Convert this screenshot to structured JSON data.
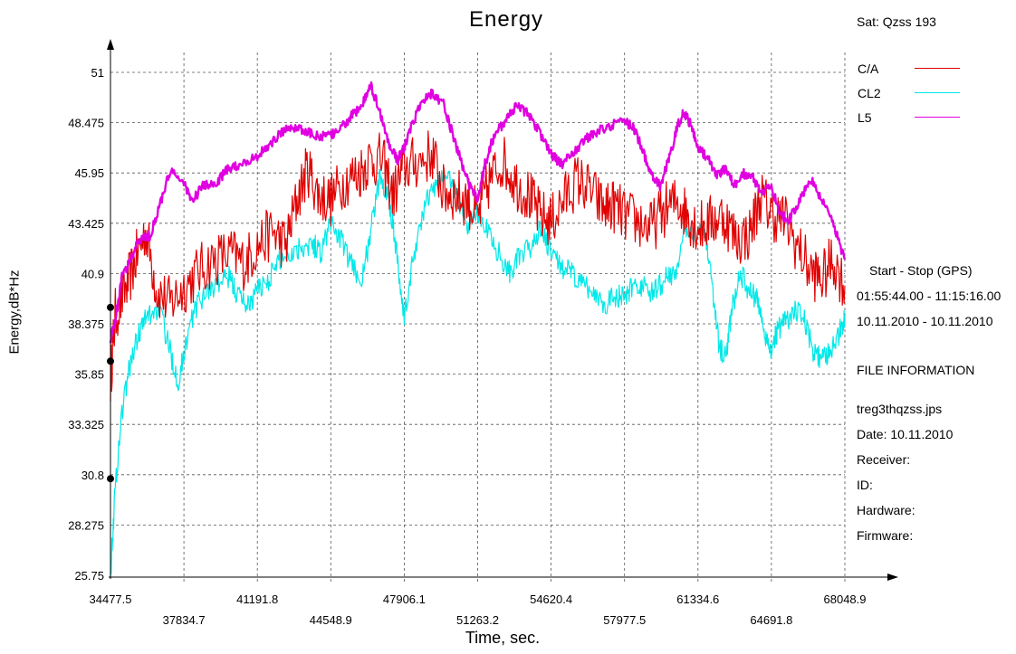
{
  "header": {
    "title": "Energy",
    "satellite": "Sat: Qzss  193"
  },
  "legend": [
    {
      "label": "C/A",
      "color": "#e00000"
    },
    {
      "label": "CL2",
      "color": "#00e8e8"
    },
    {
      "label": "L5",
      "color": "#e000e0"
    }
  ],
  "info_panel": {
    "period_label": "Start  -  Stop  (GPS)",
    "time_range": "01:55:44.00 - 11:15:16.00",
    "date_range": "10.11.2010 - 10.11.2010",
    "section_title": "FILE INFORMATION",
    "file_name": "treg3thqzss.jps",
    "date": "Date: 10.11.2010",
    "receiver": "Receiver:",
    "id": "ID:",
    "hardware": "Hardware:",
    "firmware": "Firmware:"
  },
  "chart_data": {
    "type": "line",
    "title": "Energy",
    "xlabel": "Time, sec.",
    "ylabel": "Energy,dB*Hz",
    "xlim": [
      34477.5,
      68048.9
    ],
    "ylim": [
      25.75,
      51
    ],
    "x_ticks": [
      "34477.5",
      "37834.7",
      "41191.8",
      "44548.9",
      "47906.1",
      "51263.2",
      "54620.4",
      "57977.5",
      "61334.6",
      "64691.8",
      "68048.9"
    ],
    "y_ticks": [
      "25.75",
      "28.275",
      "30.8",
      "33.325",
      "35.85",
      "38.375",
      "40.9",
      "43.425",
      "45.95",
      "48.475",
      "51"
    ],
    "grid": true,
    "legend_position": "top-right",
    "series": [
      {
        "name": "C/A",
        "color": "#e00000",
        "points": [
          [
            34477.5,
            35.6
          ],
          [
            34700,
            38.8
          ],
          [
            35200,
            40.2
          ],
          [
            35600,
            41.5
          ],
          [
            36100,
            43.1
          ],
          [
            36600,
            40.0
          ],
          [
            37200,
            39.4
          ],
          [
            37834.7,
            40.2
          ],
          [
            38500,
            41.0
          ],
          [
            39200,
            41.6
          ],
          [
            40000,
            41.9
          ],
          [
            40600,
            41.4
          ],
          [
            41191.8,
            42.3
          ],
          [
            41900,
            43.0
          ],
          [
            42500,
            42.3
          ],
          [
            43000,
            44.6
          ],
          [
            43500,
            46.2
          ],
          [
            44000,
            44.8
          ],
          [
            44548.9,
            44.6
          ],
          [
            45200,
            45.6
          ],
          [
            45800,
            45.9
          ],
          [
            46300,
            46.6
          ],
          [
            46900,
            46.6
          ],
          [
            47400,
            44.8
          ],
          [
            47906.1,
            46.2
          ],
          [
            48500,
            46.5
          ],
          [
            49200,
            46.9
          ],
          [
            49700,
            45.0
          ],
          [
            50200,
            44.9
          ],
          [
            50800,
            44.6
          ],
          [
            51263.2,
            43.7
          ],
          [
            51800,
            45.5
          ],
          [
            52400,
            46.6
          ],
          [
            53000,
            45.5
          ],
          [
            53600,
            44.8
          ],
          [
            54100,
            43.8
          ],
          [
            54620.4,
            43.5
          ],
          [
            55200,
            44.6
          ],
          [
            55800,
            45.6
          ],
          [
            56400,
            45.1
          ],
          [
            57000,
            44.2
          ],
          [
            57500,
            44.3
          ],
          [
            57977.5,
            43.8
          ],
          [
            58600,
            43.5
          ],
          [
            59200,
            43.2
          ],
          [
            59800,
            44.1
          ],
          [
            60400,
            44.5
          ],
          [
            60900,
            43.8
          ],
          [
            61334.6,
            43.2
          ],
          [
            61900,
            43.5
          ],
          [
            62500,
            43.8
          ],
          [
            63100,
            42.6
          ],
          [
            63700,
            42.9
          ],
          [
            64200,
            44.8
          ],
          [
            64691.8,
            43.9
          ],
          [
            65300,
            43.6
          ],
          [
            65900,
            42.2
          ],
          [
            66500,
            41.0
          ],
          [
            67000,
            40.6
          ],
          [
            67500,
            41.6
          ],
          [
            68048.9,
            40.3
          ]
        ]
      },
      {
        "name": "CL2",
        "color": "#00e8e8",
        "points": [
          [
            34477.5,
            25.8
          ],
          [
            34700,
            30.2
          ],
          [
            35000,
            34.0
          ],
          [
            35400,
            36.5
          ],
          [
            35800,
            38.0
          ],
          [
            36200,
            38.8
          ],
          [
            36700,
            39.2
          ],
          [
            37200,
            37.0
          ],
          [
            37600,
            35.4
          ],
          [
            37834.7,
            37.0
          ],
          [
            38300,
            39.0
          ],
          [
            38800,
            40.0
          ],
          [
            39400,
            40.4
          ],
          [
            39900,
            40.7
          ],
          [
            40300,
            39.8
          ],
          [
            40800,
            39.3
          ],
          [
            41191.8,
            40.1
          ],
          [
            41700,
            40.6
          ],
          [
            42200,
            41.6
          ],
          [
            42700,
            41.9
          ],
          [
            43200,
            42.3
          ],
          [
            43700,
            42.4
          ],
          [
            44100,
            42.0
          ],
          [
            44548.9,
            43.5
          ],
          [
            45000,
            42.6
          ],
          [
            45500,
            41.3
          ],
          [
            46000,
            40.6
          ],
          [
            46400,
            43.2
          ],
          [
            46800,
            45.8
          ],
          [
            47200,
            44.8
          ],
          [
            47500,
            42.5
          ],
          [
            47906.1,
            38.6
          ],
          [
            48400,
            42.2
          ],
          [
            48900,
            44.5
          ],
          [
            49400,
            45.4
          ],
          [
            49900,
            45.9
          ],
          [
            50300,
            44.8
          ],
          [
            50800,
            43.3
          ],
          [
            51263.2,
            44.0
          ],
          [
            51700,
            43.1
          ],
          [
            52200,
            42.0
          ],
          [
            52700,
            41.0
          ],
          [
            53100,
            41.6
          ],
          [
            53600,
            42.1
          ],
          [
            54100,
            43.1
          ],
          [
            54620.4,
            41.9
          ],
          [
            55100,
            41.3
          ],
          [
            55600,
            40.8
          ],
          [
            56100,
            40.3
          ],
          [
            56600,
            39.9
          ],
          [
            57100,
            39.4
          ],
          [
            57600,
            39.8
          ],
          [
            57977.5,
            39.6
          ],
          [
            58400,
            40.4
          ],
          [
            58800,
            40.2
          ],
          [
            59300,
            39.9
          ],
          [
            59800,
            40.6
          ],
          [
            60300,
            41.0
          ],
          [
            60800,
            43.0
          ],
          [
            61334.6,
            43.1
          ],
          [
            61700,
            42.8
          ],
          [
            62000,
            40.2
          ],
          [
            62300,
            37.2
          ],
          [
            62600,
            36.7
          ],
          [
            62900,
            39.2
          ],
          [
            63300,
            40.9
          ],
          [
            63700,
            40.0
          ],
          [
            64100,
            39.5
          ],
          [
            64400,
            37.8
          ],
          [
            64691.8,
            37.1
          ],
          [
            65000,
            38.1
          ],
          [
            65400,
            38.6
          ],
          [
            65800,
            39.0
          ],
          [
            66200,
            38.5
          ],
          [
            66600,
            37.0
          ],
          [
            67000,
            36.5
          ],
          [
            67400,
            37.0
          ],
          [
            67800,
            37.9
          ],
          [
            68048.9,
            38.8
          ]
        ]
      },
      {
        "name": "L5",
        "color": "#e000e0",
        "points": [
          [
            34477.5,
            37.6
          ],
          [
            34700,
            38.6
          ],
          [
            35000,
            40.7
          ],
          [
            35400,
            41.6
          ],
          [
            35800,
            42.6
          ],
          [
            36300,
            42.8
          ],
          [
            36800,
            44.6
          ],
          [
            37200,
            46.0
          ],
          [
            37834.7,
            45.5
          ],
          [
            38200,
            44.5
          ],
          [
            38700,
            45.3
          ],
          [
            39300,
            45.4
          ],
          [
            39800,
            46.1
          ],
          [
            40400,
            46.4
          ],
          [
            41191.8,
            46.8
          ],
          [
            41800,
            47.4
          ],
          [
            42300,
            48.0
          ],
          [
            42800,
            48.3
          ],
          [
            43400,
            48.0
          ],
          [
            44000,
            47.8
          ],
          [
            44548.9,
            47.8
          ],
          [
            45000,
            48.2
          ],
          [
            45500,
            48.8
          ],
          [
            46000,
            49.4
          ],
          [
            46400,
            50.3
          ],
          [
            46800,
            49.0
          ],
          [
            47200,
            47.4
          ],
          [
            47600,
            46.6
          ],
          [
            47906.1,
            47.2
          ],
          [
            48300,
            48.5
          ],
          [
            48800,
            49.7
          ],
          [
            49200,
            50.0
          ],
          [
            49700,
            49.4
          ],
          [
            50200,
            47.6
          ],
          [
            50600,
            46.2
          ],
          [
            51000,
            45.0
          ],
          [
            51263.2,
            44.7
          ],
          [
            51600,
            46.4
          ],
          [
            52000,
            47.8
          ],
          [
            52500,
            48.5
          ],
          [
            53000,
            49.3
          ],
          [
            53500,
            49.0
          ],
          [
            54000,
            48.2
          ],
          [
            54620.4,
            46.9
          ],
          [
            55100,
            46.4
          ],
          [
            55600,
            46.9
          ],
          [
            56100,
            47.6
          ],
          [
            56700,
            48.0
          ],
          [
            57300,
            48.3
          ],
          [
            57977.5,
            48.6
          ],
          [
            58400,
            48.2
          ],
          [
            58800,
            47.1
          ],
          [
            59200,
            45.9
          ],
          [
            59600,
            45.3
          ],
          [
            60000,
            46.6
          ],
          [
            60400,
            48.3
          ],
          [
            60700,
            49.0
          ],
          [
            61000,
            48.4
          ],
          [
            61334.6,
            47.3
          ],
          [
            61700,
            46.8
          ],
          [
            62200,
            45.9
          ],
          [
            62600,
            46.1
          ],
          [
            63000,
            45.3
          ],
          [
            63400,
            45.9
          ],
          [
            63800,
            45.8
          ],
          [
            64200,
            44.9
          ],
          [
            64691.8,
            45.3
          ],
          [
            65100,
            43.9
          ],
          [
            65500,
            43.6
          ],
          [
            66000,
            44.6
          ],
          [
            66500,
            45.6
          ],
          [
            67000,
            44.6
          ],
          [
            67500,
            43.4
          ],
          [
            68048.9,
            41.6
          ]
        ]
      }
    ],
    "markers": [
      [
        34477.5,
        30.6
      ],
      [
        34477.5,
        36.5
      ],
      [
        34477.5,
        39.2
      ]
    ]
  }
}
